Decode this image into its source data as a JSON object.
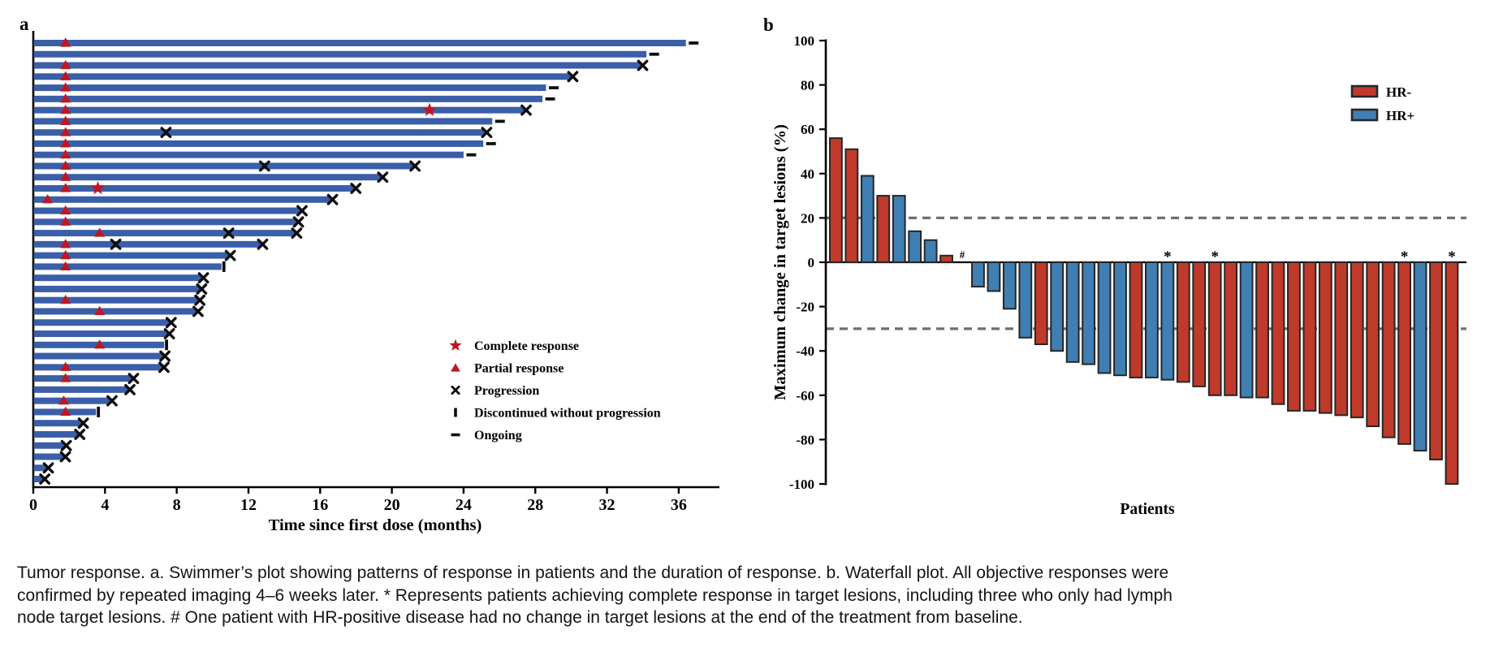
{
  "figure": {
    "caption_lines": [
      "Tumor response. a. Swimmer’s plot showing patterns of response in patients and the duration of response. b. Waterfall plot. All objective responses were",
      "confirmed by repeated imaging 4–6 weeks later. * Represents patients achieving complete response in target lesions, including three who only had lymph",
      "node target lesions. # One patient with HR-positive disease had no change in target lesions at the end of the treatment from baseline."
    ]
  },
  "chart_data": [
    {
      "type": "bar",
      "variant": "swimmer-plot",
      "panel_label": "a",
      "orientation": "horizontal",
      "xlabel": "Time since first dose (months)",
      "xticks": [
        0,
        4,
        8,
        12,
        16,
        20,
        24,
        28,
        32,
        36
      ],
      "xlim": [
        0,
        38.2
      ],
      "grid": false,
      "bar_color": "#3a5fa8",
      "marker_color": "#bf1722",
      "event_color": "#0d0d0d",
      "legend_position": "lower-right-inside",
      "legend": [
        {
          "marker": "star",
          "label": "Complete response"
        },
        {
          "marker": "triangle",
          "label": "Partial response"
        },
        {
          "marker": "x",
          "label": "Progression"
        },
        {
          "marker": "tick",
          "label": "Discontinued without progression"
        },
        {
          "marker": "dash",
          "label": "Ongoing"
        }
      ],
      "patients": [
        {
          "duration": 36.4,
          "partial_response_at": 1.8,
          "end": "ongoing"
        },
        {
          "duration": 34.2,
          "end": "ongoing"
        },
        {
          "duration": 33.9,
          "partial_response_at": 1.8,
          "end": "progression"
        },
        {
          "duration": 30.0,
          "partial_response_at": 1.8,
          "end": "progression"
        },
        {
          "duration": 28.6,
          "partial_response_at": 1.8,
          "end": "ongoing"
        },
        {
          "duration": 28.4,
          "partial_response_at": 1.8,
          "end": "ongoing"
        },
        {
          "duration": 27.4,
          "partial_response_at": 1.8,
          "complete_response_at": 22.1,
          "end": "progression"
        },
        {
          "duration": 25.6,
          "partial_response_at": 1.8,
          "end": "ongoing"
        },
        {
          "duration": 25.2,
          "partial_response_at": 1.8,
          "progression_at": [
            7.4
          ],
          "end": "progression"
        },
        {
          "duration": 25.1,
          "partial_response_at": 1.8,
          "end": "ongoing"
        },
        {
          "duration": 24.0,
          "partial_response_at": 1.8,
          "end": "ongoing"
        },
        {
          "duration": 21.2,
          "partial_response_at": 1.8,
          "progression_at": [
            12.9
          ],
          "end": "progression"
        },
        {
          "duration": 19.4,
          "partial_response_at": 1.8,
          "end": "progression"
        },
        {
          "duration": 17.9,
          "partial_response_at": 1.8,
          "complete_response_at": 3.6,
          "end": "progression"
        },
        {
          "duration": 16.6,
          "partial_response_at": 0.8,
          "end": "progression"
        },
        {
          "duration": 14.9,
          "partial_response_at": 1.8,
          "end": "progression"
        },
        {
          "duration": 14.7,
          "partial_response_at": 1.8,
          "end": "progression"
        },
        {
          "duration": 14.6,
          "partial_response_at": 3.7,
          "progression_at": [
            10.9
          ],
          "end": "progression"
        },
        {
          "duration": 12.7,
          "partial_response_at": 1.8,
          "progression_at": [
            4.6
          ],
          "end": "progression"
        },
        {
          "duration": 10.9,
          "partial_response_at": 1.8,
          "end": "progression"
        },
        {
          "duration": 10.5,
          "partial_response_at": 1.8,
          "end": "discontinued"
        },
        {
          "duration": 9.4,
          "end": "progression"
        },
        {
          "duration": 9.3,
          "end": "progression"
        },
        {
          "duration": 9.2,
          "partial_response_at": 1.8,
          "end": "progression"
        },
        {
          "duration": 9.1,
          "partial_response_at": 3.7,
          "end": "progression"
        },
        {
          "duration": 7.6,
          "end": "progression"
        },
        {
          "duration": 7.5,
          "end": "progression"
        },
        {
          "duration": 7.3,
          "partial_response_at": 3.7,
          "end": "discontinued"
        },
        {
          "duration": 7.25,
          "end": "progression"
        },
        {
          "duration": 7.2,
          "partial_response_at": 1.8,
          "end": "progression"
        },
        {
          "duration": 5.5,
          "partial_response_at": 1.8,
          "end": "progression"
        },
        {
          "duration": 5.3,
          "end": "progression"
        },
        {
          "duration": 4.3,
          "partial_response_at": 1.7,
          "end": "progression"
        },
        {
          "duration": 3.5,
          "partial_response_at": 1.8,
          "end": "discontinued"
        },
        {
          "duration": 2.7,
          "end": "progression"
        },
        {
          "duration": 2.5,
          "end": "progression"
        },
        {
          "duration": 1.75,
          "end": "progression"
        },
        {
          "duration": 1.7,
          "end": "progression"
        },
        {
          "duration": 0.75,
          "end": "progression"
        },
        {
          "duration": 0.55,
          "end": "progression"
        }
      ]
    },
    {
      "type": "bar",
      "variant": "waterfall-plot",
      "panel_label": "b",
      "ylabel": "Maximum change in target lesions (%)",
      "xlabel": "Patients",
      "ylim": [
        -100,
        100
      ],
      "yticks": [
        100,
        80,
        60,
        40,
        20,
        0,
        -20,
        -40,
        -60,
        -80,
        -100
      ],
      "reference_lines": [
        20,
        -30
      ],
      "reference_line_color": "#6f6f6f",
      "bar_outline_color": "#262626",
      "grid": false,
      "legend_position": "upper-right-inside",
      "series": [
        {
          "name": "HR-",
          "color": "#c03a2b"
        },
        {
          "name": "HR+",
          "color": "#3f7fb3"
        }
      ],
      "values": [
        56,
        51,
        39,
        30,
        30,
        14,
        10,
        3,
        0,
        -11,
        -13,
        -21,
        -34,
        -37,
        -40,
        -45,
        -46,
        -50,
        -51,
        -52,
        -52,
        -53,
        -54,
        -56,
        -60,
        -60,
        -61,
        -61,
        -64,
        -67,
        -67,
        -68,
        -69,
        -70,
        -74,
        -79,
        -82,
        -85,
        -89,
        -100
      ],
      "groups": [
        "HR-",
        "HR-",
        "HR+",
        "HR-",
        "HR+",
        "HR+",
        "HR+",
        "HR-",
        "HR+",
        "HR+",
        "HR+",
        "HR+",
        "HR+",
        "HR-",
        "HR+",
        "HR+",
        "HR+",
        "HR+",
        "HR+",
        "HR-",
        "HR+",
        "HR+",
        "HR-",
        "HR-",
        "HR-",
        "HR-",
        "HR+",
        "HR-",
        "HR-",
        "HR-",
        "HR-",
        "HR-",
        "HR-",
        "HR-",
        "HR-",
        "HR-",
        "HR-",
        "HR+",
        "HR-",
        "HR-"
      ],
      "annotations": {
        "9": "#",
        "22": "*",
        "25": "*",
        "37": "*",
        "40": "*"
      }
    }
  ]
}
